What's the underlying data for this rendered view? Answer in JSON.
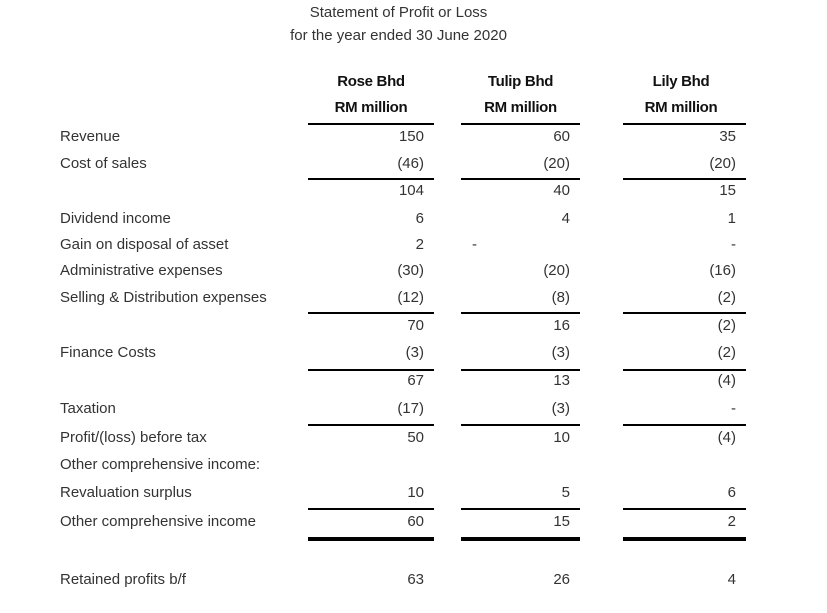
{
  "title": "Statement of Profit or Loss",
  "subtitle": "for the year ended 30 June 2020",
  "columns": [
    {
      "name": "Rose Bhd",
      "unit": "RM million"
    },
    {
      "name": "Tulip Bhd",
      "unit": "RM million"
    },
    {
      "name": "Lily Bhd",
      "unit": "RM million"
    }
  ],
  "rows": [
    {
      "label": "Revenue",
      "values": [
        "150",
        "60",
        "35"
      ]
    },
    {
      "label": "Cost of sales",
      "values": [
        "(46)",
        "(20)",
        "(20)"
      ]
    },
    {
      "label": "",
      "values": [
        "104",
        "40",
        "15"
      ]
    },
    {
      "label": "Dividend income",
      "values": [
        "6",
        "4",
        "1"
      ]
    },
    {
      "label": "Gain on disposal of asset",
      "values": [
        "2",
        "-",
        "-"
      ]
    },
    {
      "label": "Administrative expenses",
      "values": [
        "(30)",
        "(20)",
        "(16)"
      ]
    },
    {
      "label": "Selling & Distribution expenses",
      "values": [
        "(12)",
        "(8)",
        "(2)"
      ]
    },
    {
      "label": "",
      "values": [
        "70",
        "16",
        "(2)"
      ]
    },
    {
      "label": "Finance Costs",
      "values": [
        "(3)",
        "(3)",
        "(2)"
      ]
    },
    {
      "label": "",
      "values": [
        "67",
        "13",
        "(4)"
      ]
    },
    {
      "label": "Taxation",
      "values": [
        "(17)",
        "(3)",
        "-"
      ]
    },
    {
      "label": "Profit/(loss) before tax",
      "values": [
        "50",
        "10",
        "(4)"
      ]
    },
    {
      "label": "Other comprehensive income:",
      "values": [
        "",
        "",
        ""
      ]
    },
    {
      "label": "Revaluation surplus",
      "values": [
        "10",
        "5",
        "6"
      ]
    },
    {
      "label": "Other comprehensive income",
      "values": [
        "60",
        "15",
        "2"
      ]
    },
    {
      "label": "Retained profits b/f",
      "values": [
        "63",
        "26",
        "4"
      ]
    }
  ]
}
